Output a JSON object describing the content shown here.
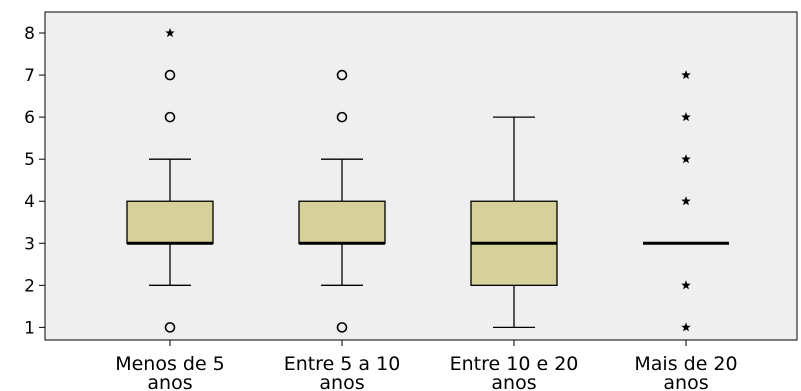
{
  "chart_data": {
    "type": "boxplot",
    "title": "",
    "xlabel": "",
    "ylabel": "",
    "ylim": [
      0.7,
      8.5
    ],
    "yticks": [
      1,
      2,
      3,
      4,
      5,
      6,
      7,
      8
    ],
    "grid": false,
    "legend": "none",
    "colors": {
      "plot_bg": "#efefef",
      "box_fill": "#d6d09b",
      "stroke": "#000000"
    },
    "categories": [
      {
        "line1": "Menos de 5",
        "line2": "anos",
        "q1": 3,
        "median": 3,
        "q3": 4,
        "whisker_low": 2,
        "whisker_high": 5,
        "outliers": [
          1,
          6,
          7
        ],
        "extremes": [
          8
        ]
      },
      {
        "line1": "Entre 5 a 10",
        "line2": "anos",
        "q1": 3,
        "median": 3,
        "q3": 4,
        "whisker_low": 2,
        "whisker_high": 5,
        "outliers": [
          1,
          6,
          7
        ],
        "extremes": []
      },
      {
        "line1": "Entre 10 e 20",
        "line2": "anos",
        "q1": 2,
        "median": 3,
        "q3": 4,
        "whisker_low": 1,
        "whisker_high": 6,
        "outliers": [],
        "extremes": []
      },
      {
        "line1": "Mais de 20",
        "line2": "anos",
        "q1": 3,
        "median": 3,
        "q3": 3,
        "whisker_low": 3,
        "whisker_high": 3,
        "outliers": [],
        "extremes": [
          1,
          2,
          4,
          5,
          6,
          7
        ]
      }
    ]
  }
}
